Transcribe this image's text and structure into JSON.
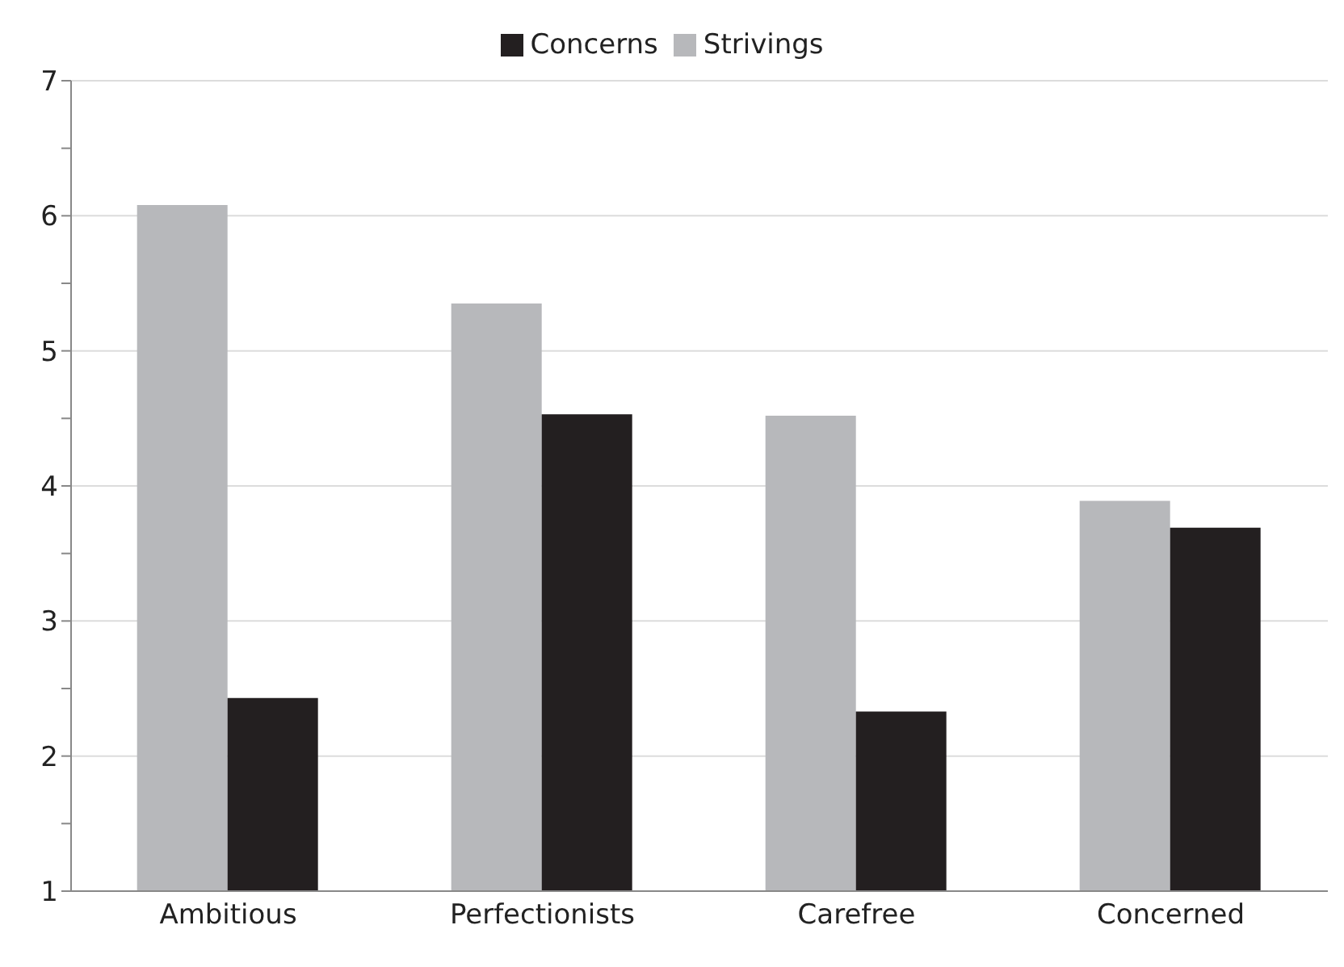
{
  "chart_data": {
    "type": "bar",
    "categories": [
      "Ambitious",
      "Perfectionists",
      "Carefree",
      "Concerned"
    ],
    "series": [
      {
        "name": "Strivings",
        "color": "#b7b8bb",
        "values": [
          6.08,
          5.35,
          4.52,
          3.89
        ]
      },
      {
        "name": "Concerns",
        "color": "#231f20",
        "values": [
          2.43,
          4.53,
          2.33,
          3.69
        ]
      }
    ],
    "ylim": [
      1,
      7
    ],
    "yticks": [
      1,
      {
        "value": 1.5,
        "label": null
      },
      2,
      {
        "value": 2.5,
        "label": null
      },
      3,
      {
        "value": 3.5,
        "label": null
      },
      4,
      {
        "value": 4.5,
        "label": null
      },
      5,
      {
        "value": 5.5,
        "label": null
      },
      6,
      {
        "value": 6.5,
        "label": null
      },
      7
    ],
    "grid": "y",
    "legend": "top"
  }
}
